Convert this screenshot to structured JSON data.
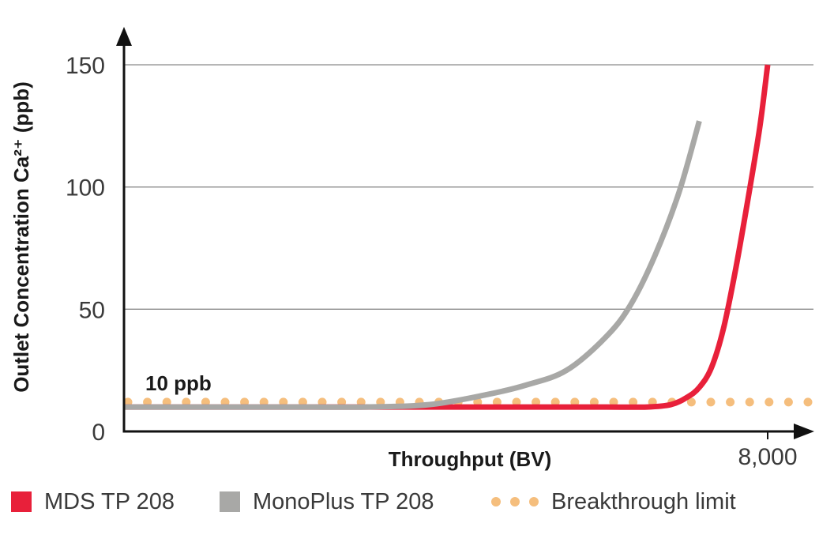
{
  "chart_data": {
    "type": "line",
    "ylabel": "Outlet Concentration Ca²⁺ (ppb)",
    "xlabel": "Throughput (BV)",
    "ylim": [
      0,
      150
    ],
    "xlim": [
      0,
      8000
    ],
    "y_ticks": [
      "0",
      "50",
      "100",
      "150"
    ],
    "x_ticks": [
      "8,000"
    ],
    "y_tick_values": [
      0,
      50,
      100,
      150
    ],
    "x_tick_values": [
      8000
    ],
    "grid": "horizontal",
    "legend_position": "bottom",
    "annotation": "10 ppb",
    "series": [
      {
        "name": "MDS TP 208",
        "color": "#e8203a",
        "style": "solid",
        "x": [
          0,
          1000,
          2000,
          3000,
          4000,
          5000,
          6000,
          6500,
          6800,
          7000,
          7150,
          7300,
          7450,
          7600,
          7750,
          7900,
          8000
        ],
        "y": [
          10,
          10,
          10,
          10,
          10,
          10,
          10,
          10,
          11,
          14,
          18,
          26,
          42,
          66,
          94,
          124,
          150
        ]
      },
      {
        "name": "MonoPlus TP 208",
        "color": "#a8a8a6",
        "style": "solid",
        "x": [
          0,
          1000,
          2000,
          3000,
          3800,
          4500,
          5000,
          5500,
          6000,
          6300,
          6600,
          6900,
          7150
        ],
        "y": [
          10,
          10,
          10,
          10,
          11,
          15,
          19,
          25,
          39,
          52,
          72,
          98,
          127
        ]
      },
      {
        "name": "Breakthrough limit",
        "color": "#f5be7d",
        "style": "dotted",
        "x": [
          0,
          8500
        ],
        "y": [
          12,
          12
        ]
      }
    ]
  }
}
